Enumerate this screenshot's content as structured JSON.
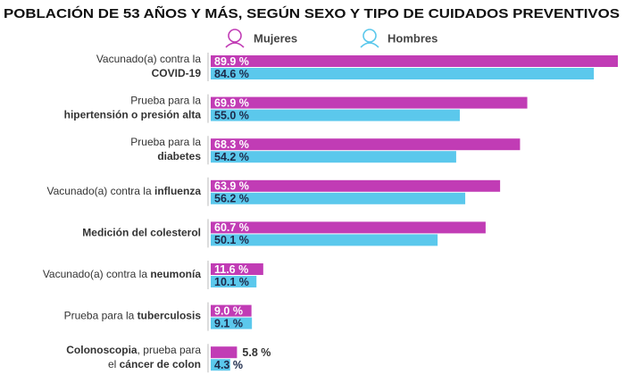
{
  "chart_data": {
    "type": "bar",
    "orientation": "horizontal",
    "title": "POBLACIÓN DE 53 AÑOS Y MÁS, SEGÚN SEXO Y TIPO DE CUIDADOS PREVENTIVOS",
    "categories": [
      [
        [
          {
            "text": "Vacunado(a) contra la",
            "bold": false
          }
        ],
        [
          {
            "text": "COVID-19",
            "bold": true
          }
        ]
      ],
      [
        [
          {
            "text": "Prueba para la",
            "bold": false
          }
        ],
        [
          {
            "text": "hipertensión o presión alta",
            "bold": true
          }
        ]
      ],
      [
        [
          {
            "text": "Prueba para la",
            "bold": false
          }
        ],
        [
          {
            "text": "diabetes",
            "bold": true
          }
        ]
      ],
      [
        [
          {
            "text": "Vacunado(a) contra la ",
            "bold": false
          },
          {
            "text": "influenza",
            "bold": true
          }
        ]
      ],
      [
        [
          {
            "text": "Medición del colesterol",
            "bold": true
          }
        ]
      ],
      [
        [
          {
            "text": "Vacunado(a) contra la ",
            "bold": false
          },
          {
            "text": "neumonía",
            "bold": true
          }
        ]
      ],
      [
        [
          {
            "text": "Prueba para la ",
            "bold": false
          },
          {
            "text": "tuberculosis",
            "bold": true
          }
        ]
      ],
      [
        [
          {
            "text": "Colonoscopia",
            "bold": true
          },
          {
            "text": ", prueba para",
            "bold": false
          }
        ],
        [
          {
            "text": "el ",
            "bold": false
          },
          {
            "text": "cáncer de colon",
            "bold": true
          }
        ]
      ]
    ],
    "series": [
      {
        "name": "Mujeres",
        "color": "#c13cb5",
        "values": [
          89.9,
          69.9,
          68.3,
          63.9,
          60.7,
          11.6,
          9.0,
          5.8
        ],
        "value_labels": [
          "89.9 %",
          "69.9 %",
          "68.3 %",
          "63.9 %",
          "60.7 %",
          "11.6 %",
          "9.0 %",
          "5.8 %"
        ]
      },
      {
        "name": "Hombres",
        "color": "#5bc8ec",
        "values": [
          84.6,
          55.0,
          54.2,
          56.2,
          50.1,
          10.1,
          9.1,
          4.3
        ],
        "value_labels": [
          "84.6 %",
          "55.0 %",
          "54.2 %",
          "56.2 %",
          "50.1 %",
          "10.1 %",
          "9.1 %",
          "4.3 %"
        ]
      }
    ]
  }
}
